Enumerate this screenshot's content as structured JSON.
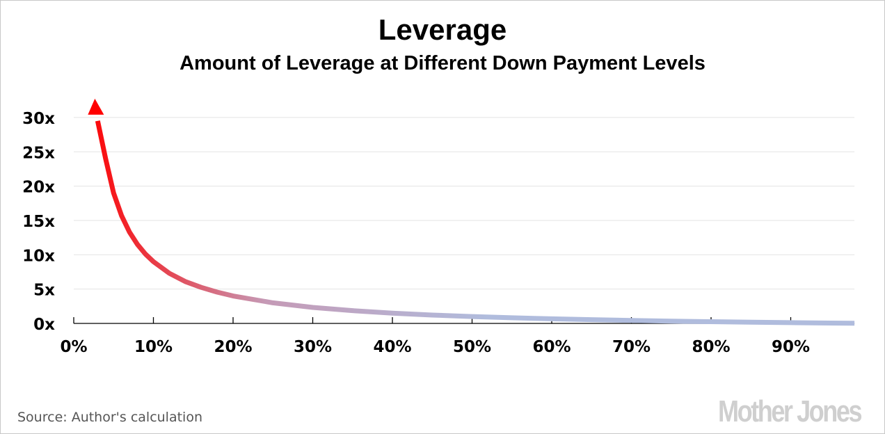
{
  "chart_data": {
    "type": "line",
    "title": "Leverage",
    "subtitle": "Amount of Leverage at Different Down Payment Levels",
    "xlabel": "",
    "ylabel": "",
    "xlim": [
      0,
      98
    ],
    "ylim": [
      0,
      30
    ],
    "x_ticks": [
      "0%",
      "10%",
      "20%",
      "30%",
      "40%",
      "50%",
      "60%",
      "70%",
      "80%",
      "90%"
    ],
    "x_tick_values": [
      0,
      10,
      20,
      30,
      40,
      50,
      60,
      70,
      80,
      90
    ],
    "y_ticks": [
      "0x",
      "5x",
      "10x",
      "15x",
      "20x",
      "25x",
      "30x"
    ],
    "y_tick_values": [
      0,
      5,
      10,
      15,
      20,
      25,
      30
    ],
    "grid": true,
    "series": [
      {
        "name": "Leverage",
        "x": [
          3,
          4,
          5,
          6,
          7,
          8,
          9,
          10,
          12,
          14,
          16,
          18,
          20,
          25,
          30,
          35,
          40,
          45,
          50,
          55,
          60,
          65,
          70,
          75,
          80,
          85,
          90,
          95,
          98
        ],
        "y": [
          32.3,
          24,
          19,
          15.7,
          13.3,
          11.5,
          10.1,
          9,
          7.3,
          6.1,
          5.25,
          4.56,
          4,
          3,
          2.33,
          1.86,
          1.5,
          1.22,
          1,
          0.82,
          0.67,
          0.54,
          0.43,
          0.33,
          0.25,
          0.18,
          0.11,
          0.05,
          0.02
        ],
        "color_start": "#ff0000",
        "color_end": "#b0bcdd",
        "arrow_at_start": true
      }
    ],
    "source": "Source: Author's calculation"
  },
  "branding": {
    "logo": "Mother Jones"
  }
}
